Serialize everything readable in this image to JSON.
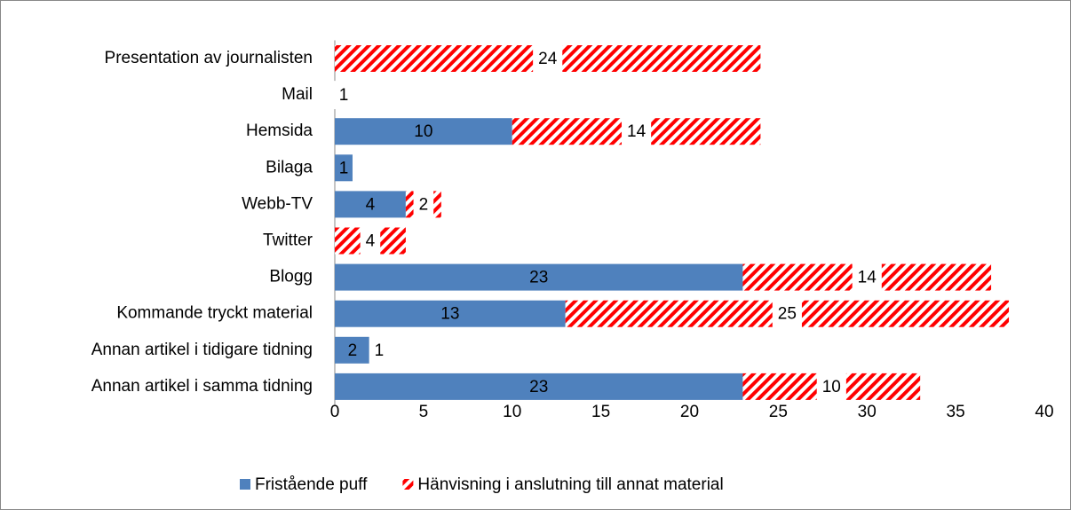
{
  "chart_data": {
    "type": "stacked_barh",
    "categories": [
      "Presentation av journalisten",
      "Mail",
      "Hemsida",
      "Bilaga",
      "Webb-TV",
      "Twitter",
      "Blogg",
      "Kommande tryckt material",
      "Annan artikel i tidigare tidning",
      "Annan artikel i samma tidning"
    ],
    "series": [
      {
        "name": "Fristående puff",
        "color": "#4f81bd",
        "values": [
          0,
          0,
          10,
          1,
          4,
          0,
          23,
          13,
          2,
          23
        ],
        "value_labels": [
          null,
          null,
          "10",
          "1",
          "4",
          null,
          "23",
          "13",
          "2",
          "23"
        ]
      },
      {
        "name": "Hänvisning i anslutning till annat material",
        "color": "#ff0000",
        "pattern": "hatch",
        "values": [
          24,
          1,
          14,
          0,
          2,
          4,
          14,
          25,
          1,
          10
        ],
        "value_labels": [
          "24",
          "1",
          "14",
          null,
          "2",
          "4",
          "14",
          "25",
          "1",
          "10"
        ]
      }
    ],
    "xlim": [
      0,
      40
    ],
    "xticks": [
      0,
      5,
      10,
      15,
      20,
      25,
      30,
      35,
      40
    ],
    "legend": "bottom"
  }
}
